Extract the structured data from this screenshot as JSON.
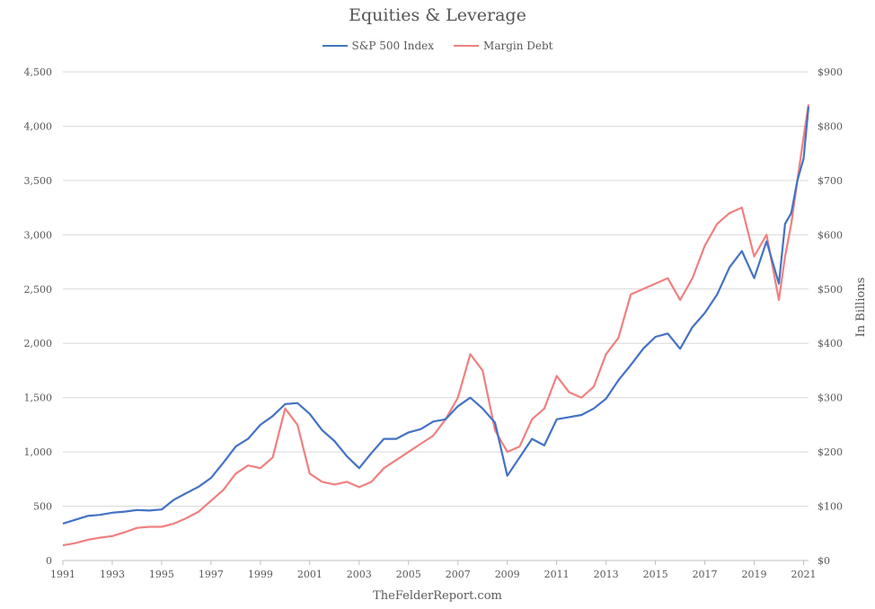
{
  "colors": {
    "sp500": "#4472C4",
    "margin": "#F08080",
    "grid": "#D9D9D9",
    "axis_text": "#595959"
  },
  "chart_data": {
    "type": "line",
    "title": "Equities & Leverage",
    "x": [
      1991,
      1991.5,
      1992,
      1992.5,
      1993,
      1993.5,
      1994,
      1994.5,
      1995,
      1995.5,
      1996,
      1996.5,
      1997,
      1997.5,
      1998,
      1998.5,
      1999,
      1999.5,
      2000,
      2000.5,
      2001,
      2001.5,
      2002,
      2002.5,
      2003,
      2003.5,
      2004,
      2004.5,
      2005,
      2005.5,
      2006,
      2006.5,
      2007,
      2007.5,
      2008,
      2008.5,
      2009,
      2009.5,
      2010,
      2010.5,
      2011,
      2011.5,
      2012,
      2012.5,
      2013,
      2013.5,
      2014,
      2014.5,
      2015,
      2015.5,
      2016,
      2016.5,
      2017,
      2017.5,
      2018,
      2018.5,
      2019,
      2019.5,
      2020,
      2020.25,
      2020.5,
      2020.75,
      2021,
      2021.2
    ],
    "series": [
      {
        "name": "S&P 500 Index",
        "axis": "left",
        "values": [
          340,
          375,
          410,
          420,
          440,
          450,
          465,
          460,
          470,
          560,
          620,
          680,
          760,
          900,
          1050,
          1120,
          1250,
          1330,
          1440,
          1450,
          1350,
          1200,
          1100,
          960,
          850,
          990,
          1120,
          1120,
          1180,
          1210,
          1280,
          1300,
          1420,
          1500,
          1400,
          1270,
          780,
          950,
          1120,
          1060,
          1300,
          1320,
          1340,
          1400,
          1490,
          1660,
          1800,
          1950,
          2060,
          2090,
          1950,
          2150,
          2280,
          2450,
          2700,
          2850,
          2600,
          2940,
          2550,
          3100,
          3200,
          3500,
          3700,
          4180
        ]
      },
      {
        "name": "Margin Debt",
        "axis": "right",
        "values": [
          28,
          32,
          38,
          42,
          45,
          52,
          60,
          62,
          62,
          68,
          78,
          90,
          110,
          130,
          160,
          175,
          170,
          190,
          280,
          250,
          160,
          145,
          140,
          145,
          135,
          145,
          170,
          185,
          200,
          215,
          230,
          260,
          300,
          380,
          350,
          240,
          200,
          210,
          260,
          280,
          340,
          310,
          300,
          320,
          380,
          410,
          490,
          500,
          510,
          520,
          480,
          520,
          580,
          620,
          640,
          650,
          560,
          600,
          480,
          560,
          620,
          700,
          780,
          840
        ]
      }
    ],
    "xlim": [
      1991,
      2021.2
    ],
    "x_ticks": [
      "1991",
      "1993",
      "1995",
      "1997",
      "1999",
      "2001",
      "2003",
      "2005",
      "2007",
      "2009",
      "2011",
      "2013",
      "2015",
      "2017",
      "2019",
      "2021"
    ],
    "y_left": {
      "min": 0,
      "max": 4500,
      "ticks": [
        "0",
        "500",
        "1,000",
        "1,500",
        "2,000",
        "2,500",
        "3,000",
        "3,500",
        "4,000",
        "4,500"
      ]
    },
    "y_right": {
      "min": 0,
      "max": 900,
      "label": "In Billions",
      "ticks": [
        "$0",
        "$100",
        "$200",
        "$300",
        "$400",
        "$500",
        "$600",
        "$700",
        "$800",
        "$900"
      ]
    },
    "grid": "horizontal",
    "legend": "top-center",
    "source": "TheFelderReport.com"
  }
}
